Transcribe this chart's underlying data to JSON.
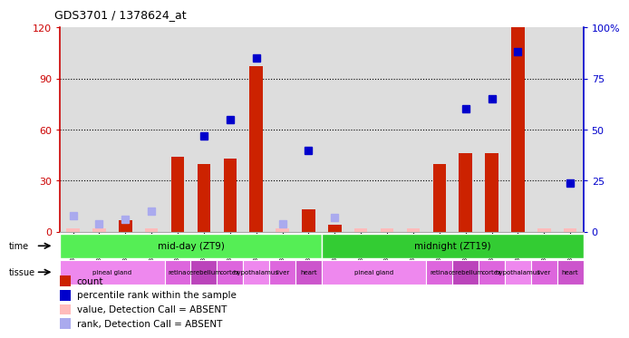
{
  "title": "GDS3701 / 1378624_at",
  "samples": [
    "GSM310035",
    "GSM310036",
    "GSM310037",
    "GSM310038",
    "GSM310043",
    "GSM310045",
    "GSM310047",
    "GSM310049",
    "GSM310051",
    "GSM310053",
    "GSM310039",
    "GSM310040",
    "GSM310041",
    "GSM310042",
    "GSM310044",
    "GSM310046",
    "GSM310048",
    "GSM310050",
    "GSM310052",
    "GSM310054"
  ],
  "count_values": [
    2,
    2,
    7,
    2,
    44,
    40,
    43,
    97,
    2,
    13,
    4,
    2,
    2,
    2,
    40,
    46,
    46,
    120,
    2,
    2
  ],
  "count_absent": [
    true,
    true,
    false,
    true,
    false,
    false,
    false,
    false,
    true,
    false,
    false,
    true,
    true,
    true,
    false,
    false,
    false,
    false,
    true,
    true
  ],
  "rank_values": [
    8,
    4,
    6,
    10,
    null,
    47,
    55,
    85,
    4,
    40,
    7,
    null,
    null,
    null,
    null,
    60,
    65,
    88,
    null,
    24
  ],
  "rank_absent": [
    true,
    true,
    true,
    true,
    false,
    false,
    false,
    false,
    true,
    false,
    true,
    false,
    false,
    false,
    false,
    false,
    false,
    false,
    false,
    false
  ],
  "ylim_left": [
    0,
    120
  ],
  "ylim_right": [
    0,
    100
  ],
  "yticks_left": [
    0,
    30,
    60,
    90,
    120
  ],
  "yticks_right": [
    0,
    25,
    50,
    75,
    100
  ],
  "ytick_labels_left": [
    "0",
    "30",
    "60",
    "90",
    "120"
  ],
  "ytick_labels_right": [
    "0",
    "25",
    "50",
    "75",
    "100%"
  ],
  "bar_color_present": "#cc2200",
  "bar_color_absent": "#ffbbbb",
  "rank_color_present": "#0000cc",
  "rank_color_absent": "#aaaaee",
  "time_colors": [
    "#55ee55",
    "#33cc33"
  ],
  "time_labels": [
    "mid-day (ZT9)",
    "midnight (ZT19)"
  ],
  "time_starts": [
    0,
    10
  ],
  "time_ends": [
    9,
    19
  ],
  "tissue_labels": [
    "pineal gland",
    "retina",
    "cerebellum",
    "cortex",
    "hypothalamus",
    "liver",
    "heart",
    "pineal gland",
    "retina",
    "cerebellum",
    "cortex",
    "hypothalamus",
    "liver",
    "heart"
  ],
  "tissue_starts": [
    0,
    4,
    5,
    6,
    7,
    8,
    9,
    10,
    14,
    15,
    16,
    17,
    18,
    19
  ],
  "tissue_ends": [
    3,
    4,
    5,
    6,
    7,
    8,
    9,
    13,
    14,
    15,
    16,
    17,
    18,
    19
  ],
  "tissue_colors": [
    "#ee88ee",
    "#dd66dd",
    "#bb44bb",
    "#dd66dd",
    "#ee88ee",
    "#dd66dd",
    "#cc55cc",
    "#ee88ee",
    "#dd66dd",
    "#bb44bb",
    "#dd66dd",
    "#ee88ee",
    "#dd66dd",
    "#cc55cc"
  ],
  "left_axis_color": "#cc0000",
  "right_axis_color": "#0000cc",
  "plot_bg": "#dddddd",
  "legend_items": [
    {
      "color": "#cc2200",
      "label": "count"
    },
    {
      "color": "#0000cc",
      "label": "percentile rank within the sample"
    },
    {
      "color": "#ffbbbb",
      "label": "value, Detection Call = ABSENT"
    },
    {
      "color": "#aaaaee",
      "label": "rank, Detection Call = ABSENT"
    }
  ]
}
